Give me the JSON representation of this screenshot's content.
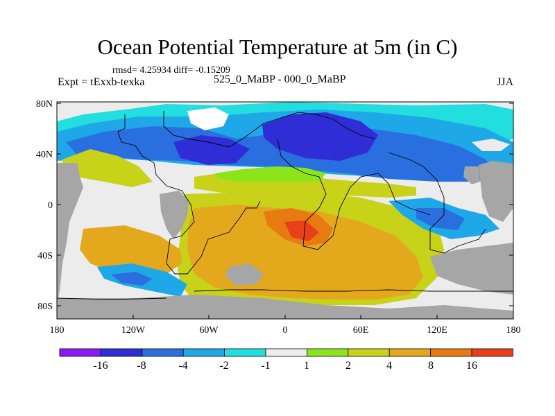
{
  "title": "Ocean Potential Temperature at 5m (in C)",
  "stats": "rmsd= 4.25934 diff= -0.15209",
  "experiment": "Expt = tExxb-texka",
  "center_label": "525_0_MaBP - 000_0_MaBP",
  "season": "JJA",
  "lat_labels": [
    "80N",
    "40N",
    "0",
    "40S",
    "80S"
  ],
  "lon_labels": [
    "180",
    "120W",
    "60W",
    "0",
    "60E",
    "120E",
    "180"
  ],
  "colorbar": {
    "colors": [
      "#8a1cf0",
      "#2f2dd6",
      "#2a6fe0",
      "#1ea8e8",
      "#22dede",
      "#ececec",
      "#8de41a",
      "#c8d219",
      "#e3a81c",
      "#e87a12",
      "#e8401a"
    ],
    "labels": [
      "-16",
      "-8",
      "-4",
      "-2",
      "-1",
      "1",
      "2",
      "4",
      "8",
      "16"
    ]
  },
  "colors": {
    "land": "#a6a6a6",
    "neutral": "#ececec"
  }
}
